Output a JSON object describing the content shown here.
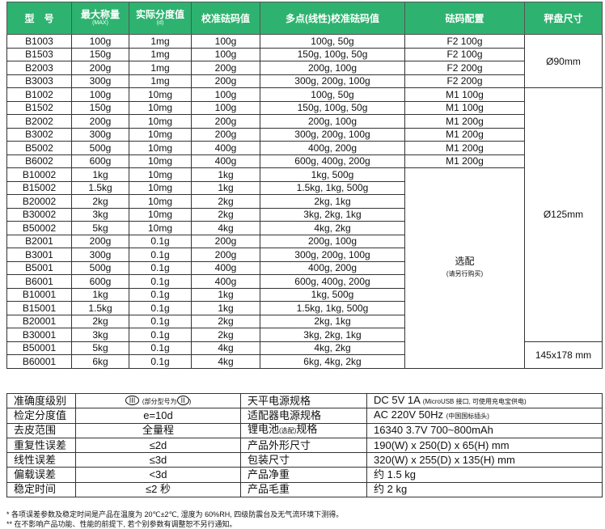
{
  "header": {
    "model": "型　号",
    "max": "最大称量",
    "max_sub": "(MAX)",
    "d": "实际分度值",
    "d_sub": "(d)",
    "cal": "校准砝码值",
    "multi": "多点(线性)校准砝码值",
    "config": "砝码配置",
    "pan": "秤盘尺寸"
  },
  "rows": [
    [
      "B1003",
      "100g",
      "1mg",
      "100g",
      "100g, 50g",
      "F2 100g"
    ],
    [
      "B1503",
      "150g",
      "1mg",
      "100g",
      "150g, 100g, 50g",
      "F2 100g"
    ],
    [
      "B2003",
      "200g",
      "1mg",
      "200g",
      "200g, 100g",
      "F2 200g"
    ],
    [
      "B3003",
      "300g",
      "1mg",
      "200g",
      "300g, 200g, 100g",
      "F2 200g"
    ],
    [
      "B1002",
      "100g",
      "10mg",
      "100g",
      "100g, 50g",
      "M1 100g"
    ],
    [
      "B1502",
      "150g",
      "10mg",
      "100g",
      "150g, 100g, 50g",
      "M1 100g"
    ],
    [
      "B2002",
      "200g",
      "10mg",
      "200g",
      "200g, 100g",
      "M1 200g"
    ],
    [
      "B3002",
      "300g",
      "10mg",
      "200g",
      "300g, 200g, 100g",
      "M1 200g"
    ],
    [
      "B5002",
      "500g",
      "10mg",
      "400g",
      "400g, 200g",
      "M1 200g"
    ],
    [
      "B6002",
      "600g",
      "10mg",
      "400g",
      "600g, 400g, 200g",
      "M1 200g"
    ],
    [
      "B10002",
      "1kg",
      "10mg",
      "1kg",
      "1kg, 500g"
    ],
    [
      "B15002",
      "1.5kg",
      "10mg",
      "1kg",
      "1.5kg, 1kg, 500g"
    ],
    [
      "B20002",
      "2kg",
      "10mg",
      "2kg",
      "2kg, 1kg"
    ],
    [
      "B30002",
      "3kg",
      "10mg",
      "2kg",
      "3kg, 2kg, 1kg"
    ],
    [
      "B50002",
      "5kg",
      "10mg",
      "4kg",
      "4kg, 2kg"
    ],
    [
      "B2001",
      "200g",
      "0.1g",
      "200g",
      "200g, 100g"
    ],
    [
      "B3001",
      "300g",
      "0.1g",
      "200g",
      "300g, 200g, 100g"
    ],
    [
      "B5001",
      "500g",
      "0.1g",
      "400g",
      "400g, 200g"
    ],
    [
      "B6001",
      "600g",
      "0.1g",
      "400g",
      "600g, 400g, 200g"
    ],
    [
      "B10001",
      "1kg",
      "0.1g",
      "1kg",
      "1kg, 500g"
    ],
    [
      "B15001",
      "1.5kg",
      "0.1g",
      "1kg",
      "1.5kg, 1kg, 500g"
    ],
    [
      "B20001",
      "2kg",
      "0.1g",
      "2kg",
      "2kg, 1kg"
    ],
    [
      "B30001",
      "3kg",
      "0.1g",
      "2kg",
      "3kg, 2kg, 1kg"
    ],
    [
      "B50001",
      "5kg",
      "0.1g",
      "4kg",
      "4kg, 2kg"
    ],
    [
      "B60001",
      "6kg",
      "0.1g",
      "4kg",
      "6kg, 4kg, 2kg"
    ]
  ],
  "optional": "选配",
  "optional_sub": "(请另行购买)",
  "pans": [
    "Ø90mm",
    "Ø125mm",
    "145x178 mm"
  ],
  "specs": [
    {
      "k1": "准确度级别",
      "v1": "III",
      "v1_note": "(部分型号为",
      "v1_note2": "II",
      "k2": "天平电源规格",
      "v2": "DC 5V 1A",
      "v2_note": "(MicroUSB 接口, 可使用充电宝供电)"
    },
    {
      "k1": "检定分度值",
      "v1": "e=10d",
      "k2": "适配器电源规格",
      "v2": "AC 220V 50Hz",
      "v2_note": "(中国国标插头)"
    },
    {
      "k1": "去皮范围",
      "v1": "全量程",
      "k2": "锂电池",
      "k2_note": "(选配)",
      "k2_tail": "规格",
      "v2": "16340  3.7V  700~800mAh"
    },
    {
      "k1": "重复性误差",
      "v1": "≤2d",
      "k2": "产品外形尺寸",
      "v2": "190(W) x 250(D) x 65(H) mm"
    },
    {
      "k1": "线性误差",
      "v1": "≤3d",
      "k2": "包装尺寸",
      "v2": "320(W) x 255(D) x 135(H) mm"
    },
    {
      "k1": "偏载误差",
      "v1": "<3d",
      "k2": "产品净重",
      "v2": "约 1.5 kg"
    },
    {
      "k1": "稳定时间",
      "v1": "≤2 秒",
      "k2": "产品毛重",
      "v2": "约 2 kg"
    }
  ],
  "notes": [
    "* 各项误差参数及稳定时间是产品在温度为 20℃±2℃, 湿度为 60%RH, 四级防震台及无气流环境下测得。",
    "** 在不影响产品功能、性能的前提下, 若个别参数有调整恕不另行通知。"
  ],
  "colors": {
    "header": "#2db36f"
  }
}
